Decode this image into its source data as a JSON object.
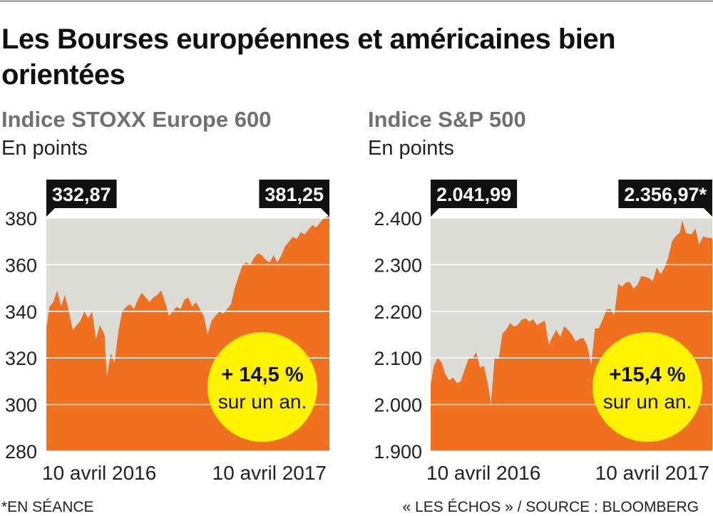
{
  "title": "Les Bourses européennes et américaines bien orientées",
  "colors": {
    "fill": "#f07020",
    "background": "#dcdcd6",
    "badge": "#fff200",
    "label_box": "#111111",
    "grid": "#ffffff"
  },
  "footer": {
    "left": "*EN SÉANCE",
    "right": "« LES ÉCHOS » / SOURCE : BLOOMBERG"
  },
  "chart_data": [
    {
      "type": "area",
      "title": "Indice STOXX Europe 600",
      "ylabel": "En points",
      "ylim": [
        280,
        380
      ],
      "yticks": [
        {
          "value": 380,
          "label": "380"
        },
        {
          "value": 360,
          "label": "360"
        },
        {
          "value": 340,
          "label": "340"
        },
        {
          "value": 320,
          "label": "320"
        },
        {
          "value": 300,
          "label": "300"
        },
        {
          "value": 280,
          "label": "280"
        }
      ],
      "xlim": [
        "2016-04-10",
        "2017-04-10"
      ],
      "xticks": [
        {
          "value": "2016-04-10",
          "label": "10 avril 2016"
        },
        {
          "value": "2017-04-10",
          "label": "10 avril 2017"
        }
      ],
      "start_label": "332,87",
      "end_label": "381,25",
      "badge": {
        "line1": "+ 14,5 %",
        "line2": "sur un an."
      },
      "series": [
        {
          "points": [
            [
              "2016-04-10",
              332.9
            ],
            [
              "2016-04-14",
              342
            ],
            [
              "2016-04-19",
              344
            ],
            [
              "2016-04-24",
              349
            ],
            [
              "2016-04-29",
              342
            ],
            [
              "2016-05-04",
              347
            ],
            [
              "2016-05-09",
              340
            ],
            [
              "2016-05-14",
              332
            ],
            [
              "2016-05-19",
              334
            ],
            [
              "2016-05-24",
              336
            ],
            [
              "2016-05-29",
              340
            ],
            [
              "2016-06-03",
              337
            ],
            [
              "2016-06-08",
              340
            ],
            [
              "2016-06-13",
              328
            ],
            [
              "2016-06-18",
              334
            ],
            [
              "2016-06-24",
              330
            ],
            [
              "2016-06-27",
              312
            ],
            [
              "2016-07-02",
              322
            ],
            [
              "2016-07-07",
              318
            ],
            [
              "2016-07-12",
              332
            ],
            [
              "2016-07-17",
              340
            ],
            [
              "2016-07-22",
              342
            ],
            [
              "2016-07-27",
              343
            ],
            [
              "2016-08-01",
              341
            ],
            [
              "2016-08-06",
              345
            ],
            [
              "2016-08-11",
              348
            ],
            [
              "2016-08-16",
              346
            ],
            [
              "2016-08-21",
              344
            ],
            [
              "2016-08-26",
              346
            ],
            [
              "2016-08-31",
              347
            ],
            [
              "2016-09-05",
              349
            ],
            [
              "2016-09-10",
              344
            ],
            [
              "2016-09-15",
              338
            ],
            [
              "2016-09-20",
              340
            ],
            [
              "2016-09-25",
              342
            ],
            [
              "2016-09-30",
              341
            ],
            [
              "2016-10-05",
              345
            ],
            [
              "2016-10-10",
              346
            ],
            [
              "2016-10-15",
              342
            ],
            [
              "2016-10-20",
              344
            ],
            [
              "2016-10-25",
              341
            ],
            [
              "2016-10-30",
              338
            ],
            [
              "2016-11-04",
              330
            ],
            [
              "2016-11-09",
              336
            ],
            [
              "2016-11-14",
              338
            ],
            [
              "2016-11-19",
              340
            ],
            [
              "2016-11-24",
              339
            ],
            [
              "2016-11-29",
              341
            ],
            [
              "2016-12-04",
              343
            ],
            [
              "2016-12-09",
              350
            ],
            [
              "2016-12-14",
              355
            ],
            [
              "2016-12-19",
              360
            ],
            [
              "2016-12-24",
              361
            ],
            [
              "2016-12-29",
              360
            ],
            [
              "2017-01-03",
              363
            ],
            [
              "2017-01-08",
              365
            ],
            [
              "2017-01-13",
              364
            ],
            [
              "2017-01-18",
              362
            ],
            [
              "2017-01-23",
              361
            ],
            [
              "2017-01-28",
              364
            ],
            [
              "2017-02-02",
              361
            ],
            [
              "2017-02-07",
              364
            ],
            [
              "2017-02-12",
              368
            ],
            [
              "2017-02-17",
              370
            ],
            [
              "2017-02-22",
              372
            ],
            [
              "2017-02-27",
              371
            ],
            [
              "2017-03-04",
              374
            ],
            [
              "2017-03-09",
              373
            ],
            [
              "2017-03-14",
              375
            ],
            [
              "2017-03-19",
              377
            ],
            [
              "2017-03-24",
              376
            ],
            [
              "2017-03-29",
              378
            ],
            [
              "2017-04-03",
              380
            ],
            [
              "2017-04-10",
              381.25
            ]
          ]
        }
      ]
    },
    {
      "type": "area",
      "title": "Indice S&P 500",
      "ylabel": "En points",
      "ylim": [
        1900,
        2400
      ],
      "yticks": [
        {
          "value": 2400,
          "label": "2.400"
        },
        {
          "value": 2300,
          "label": "2.300"
        },
        {
          "value": 2200,
          "label": "2.200"
        },
        {
          "value": 2100,
          "label": "2.100"
        },
        {
          "value": 2000,
          "label": "2.000"
        },
        {
          "value": 1900,
          "label": "1.900"
        }
      ],
      "xlim": [
        "2016-04-10",
        "2017-04-10"
      ],
      "xticks": [
        {
          "value": "2016-04-10",
          "label": "10 avril 2016"
        },
        {
          "value": "2017-04-10",
          "label": "10 avril 2017"
        }
      ],
      "start_label": "2.041,99",
      "end_label": "2.356,97*",
      "badge": {
        "line1": "+15,4 %",
        "line2": "sur un an."
      },
      "series": [
        {
          "points": [
            [
              "2016-04-10",
              2042
            ],
            [
              "2016-04-14",
              2082
            ],
            [
              "2016-04-19",
              2100
            ],
            [
              "2016-04-24",
              2091
            ],
            [
              "2016-04-29",
              2065
            ],
            [
              "2016-05-04",
              2052
            ],
            [
              "2016-05-09",
              2058
            ],
            [
              "2016-05-14",
              2046
            ],
            [
              "2016-05-19",
              2050
            ],
            [
              "2016-05-24",
              2075
            ],
            [
              "2016-05-29",
              2098
            ],
            [
              "2016-06-03",
              2099
            ],
            [
              "2016-06-08",
              2112
            ],
            [
              "2016-06-13",
              2079
            ],
            [
              "2016-06-18",
              2083
            ],
            [
              "2016-06-24",
              2037
            ],
            [
              "2016-06-27",
              2000
            ],
            [
              "2016-07-02",
              2102
            ],
            [
              "2016-07-07",
              2097
            ],
            [
              "2016-07-12",
              2152
            ],
            [
              "2016-07-17",
              2161
            ],
            [
              "2016-07-22",
              2175
            ],
            [
              "2016-07-27",
              2167
            ],
            [
              "2016-08-01",
              2171
            ],
            [
              "2016-08-06",
              2182
            ],
            [
              "2016-08-11",
              2185
            ],
            [
              "2016-08-16",
              2178
            ],
            [
              "2016-08-21",
              2183
            ],
            [
              "2016-08-26",
              2170
            ],
            [
              "2016-08-31",
              2176
            ],
            [
              "2016-09-05",
              2180
            ],
            [
              "2016-09-10",
              2128
            ],
            [
              "2016-09-15",
              2146
            ],
            [
              "2016-09-20",
              2160
            ],
            [
              "2016-09-25",
              2145
            ],
            [
              "2016-09-30",
              2168
            ],
            [
              "2016-10-05",
              2160
            ],
            [
              "2016-10-10",
              2150
            ],
            [
              "2016-10-15",
              2135
            ],
            [
              "2016-10-20",
              2141
            ],
            [
              "2016-10-25",
              2143
            ],
            [
              "2016-10-30",
              2126
            ],
            [
              "2016-11-04",
              2085
            ],
            [
              "2016-11-09",
              2163
            ],
            [
              "2016-11-14",
              2164
            ],
            [
              "2016-11-19",
              2182
            ],
            [
              "2016-11-24",
              2204
            ],
            [
              "2016-11-29",
              2205
            ],
            [
              "2016-12-04",
              2192
            ],
            [
              "2016-12-09",
              2259
            ],
            [
              "2016-12-14",
              2253
            ],
            [
              "2016-12-19",
              2262
            ],
            [
              "2016-12-24",
              2263
            ],
            [
              "2016-12-29",
              2249
            ],
            [
              "2017-01-03",
              2257
            ],
            [
              "2017-01-08",
              2276
            ],
            [
              "2017-01-13",
              2274
            ],
            [
              "2017-01-18",
              2271
            ],
            [
              "2017-01-23",
              2265
            ],
            [
              "2017-01-28",
              2294
            ],
            [
              "2017-02-02",
              2280
            ],
            [
              "2017-02-07",
              2293
            ],
            [
              "2017-02-12",
              2316
            ],
            [
              "2017-02-17",
              2351
            ],
            [
              "2017-02-22",
              2362
            ],
            [
              "2017-02-27",
              2369
            ],
            [
              "2017-03-02",
              2395
            ],
            [
              "2017-03-07",
              2368
            ],
            [
              "2017-03-14",
              2365
            ],
            [
              "2017-03-19",
              2378
            ],
            [
              "2017-03-24",
              2343
            ],
            [
              "2017-03-29",
              2361
            ],
            [
              "2017-04-03",
              2358
            ],
            [
              "2017-04-10",
              2357
            ]
          ]
        }
      ]
    }
  ]
}
